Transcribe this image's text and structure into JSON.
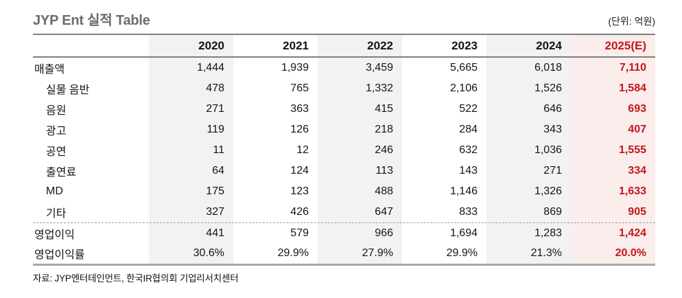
{
  "page": {
    "title": "JYP Ent 실적 Table",
    "unit_note": "(단위: 억원)",
    "source": "자료: JYP엔터테인먼트, 한국IR협의회 기업리서치센터"
  },
  "colors": {
    "accent_red": "#c4161c",
    "shade_gray": "#f2f2f2",
    "shade_pink": "#faedec"
  },
  "chart_data": {
    "type": "table",
    "title": "JYP Ent 실적 Table",
    "unit": "억원",
    "columns": [
      "2020",
      "2021",
      "2022",
      "2023",
      "2024",
      "2025(E)"
    ],
    "estimate_column": "2025(E)",
    "rows": [
      {
        "label": "매출액",
        "indent": false,
        "values": [
          "1,444",
          "1,939",
          "3,459",
          "5,665",
          "6,018",
          "7,110"
        ]
      },
      {
        "label": "실물 음반",
        "indent": true,
        "values": [
          "478",
          "765",
          "1,332",
          "2,106",
          "1,526",
          "1,584"
        ]
      },
      {
        "label": "음원",
        "indent": true,
        "values": [
          "271",
          "363",
          "415",
          "522",
          "646",
          "693"
        ]
      },
      {
        "label": "광고",
        "indent": true,
        "values": [
          "119",
          "126",
          "218",
          "284",
          "343",
          "407"
        ]
      },
      {
        "label": "공연",
        "indent": true,
        "values": [
          "11",
          "12",
          "246",
          "632",
          "1,036",
          "1,555"
        ]
      },
      {
        "label": "출연료",
        "indent": true,
        "values": [
          "64",
          "124",
          "113",
          "143",
          "271",
          "334"
        ]
      },
      {
        "label": "MD",
        "indent": true,
        "values": [
          "175",
          "123",
          "488",
          "1,146",
          "1,326",
          "1,633"
        ]
      },
      {
        "label": "기타",
        "indent": true,
        "values": [
          "327",
          "426",
          "647",
          "833",
          "869",
          "905"
        ]
      },
      {
        "label": "영업이익",
        "indent": false,
        "values": [
          "441",
          "579",
          "966",
          "1,694",
          "1,283",
          "1,424"
        ]
      },
      {
        "label": "영업이익률",
        "indent": false,
        "values": [
          "30.6%",
          "29.9%",
          "27.9%",
          "29.9%",
          "21.3%",
          "20.0%"
        ]
      }
    ],
    "source": "자료: JYP엔터테인먼트, 한국IR협의회 기업리서치센터"
  }
}
